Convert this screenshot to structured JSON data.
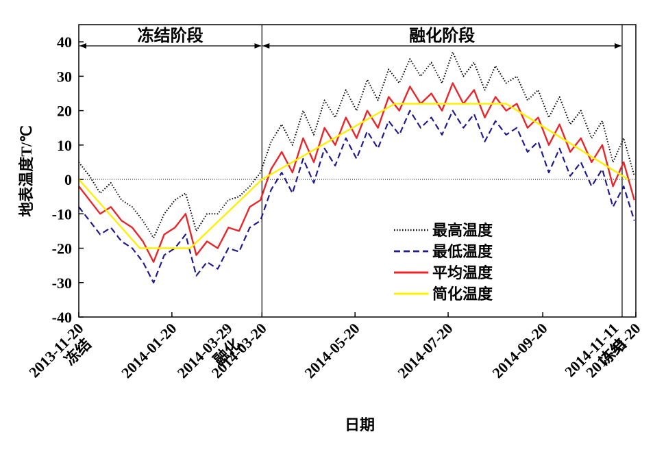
{
  "chart_data": {
    "type": "line",
    "y_label": "地表温度T/℃",
    "x_label": "日期",
    "x": [
      "2013-11-20",
      "2013-11-27",
      "2013-12-04",
      "2013-12-11",
      "2013-12-18",
      "2013-12-25",
      "2014-01-01",
      "2014-01-08",
      "2014-01-15",
      "2014-01-22",
      "2014-01-29",
      "2014-02-05",
      "2014-02-12",
      "2014-02-19",
      "2014-02-26",
      "2014-03-05",
      "2014-03-12",
      "2014-03-19",
      "2014-03-26",
      "2014-04-02",
      "2014-04-09",
      "2014-04-16",
      "2014-04-23",
      "2014-04-30",
      "2014-05-07",
      "2014-05-14",
      "2014-05-21",
      "2014-05-28",
      "2014-06-04",
      "2014-06-11",
      "2014-06-18",
      "2014-06-25",
      "2014-07-02",
      "2014-07-09",
      "2014-07-16",
      "2014-07-23",
      "2014-07-30",
      "2014-08-06",
      "2014-08-13",
      "2014-08-20",
      "2014-08-27",
      "2014-09-03",
      "2014-09-10",
      "2014-09-17",
      "2014-09-24",
      "2014-10-01",
      "2014-10-08",
      "2014-10-15",
      "2014-10-22",
      "2014-10-29",
      "2014-11-05",
      "2014-11-12",
      "2014-11-19"
    ],
    "series": [
      {
        "name": "最高温度",
        "color": "#000000",
        "dash": "dotted",
        "values": [
          5,
          1,
          -4,
          -1,
          -6,
          -8,
          -12,
          -17,
          -10,
          -6,
          -4,
          -15,
          -10,
          -10,
          -6,
          -5,
          -2,
          2,
          11,
          16,
          10,
          20,
          13,
          23,
          18,
          26,
          20,
          29,
          23,
          32,
          28,
          35,
          30,
          34,
          28,
          37,
          30,
          34,
          26,
          33,
          28,
          30,
          23,
          26,
          18,
          24,
          16,
          20,
          12,
          17,
          5,
          12,
          1
        ]
      },
      {
        "name": "最低温度",
        "color": "#211a8c",
        "dash": "dashed",
        "values": [
          -8,
          -12,
          -16,
          -14,
          -18,
          -20,
          -24,
          -30,
          -22,
          -20,
          -16,
          -28,
          -24,
          -26,
          -20,
          -21,
          -14,
          -12,
          -3,
          2,
          -4,
          6,
          -1,
          9,
          4,
          12,
          6,
          14,
          9,
          17,
          13,
          20,
          15,
          18,
          13,
          20,
          15,
          19,
          11,
          17,
          13,
          15,
          8,
          11,
          2,
          9,
          1,
          5,
          -2,
          3,
          -8,
          -2,
          -12
        ]
      },
      {
        "name": "平均温度",
        "color": "#e8262a",
        "dash": "solid",
        "values": [
          -2,
          -6,
          -10,
          -8,
          -12,
          -14,
          -18,
          -24,
          -16,
          -14,
          -10,
          -22,
          -18,
          -20,
          -14,
          -15,
          -8,
          -6,
          3,
          8,
          2,
          12,
          5,
          15,
          10,
          18,
          12,
          20,
          15,
          24,
          20,
          27,
          22,
          25,
          20,
          28,
          22,
          26,
          18,
          24,
          20,
          22,
          15,
          18,
          10,
          16,
          8,
          12,
          5,
          10,
          -2,
          5,
          -6
        ]
      },
      {
        "name": "简化温度",
        "color": "#fff000",
        "dash": "solid",
        "x": [
          "2013-11-20",
          "2013-12-30",
          "2014-02-01",
          "2014-03-20",
          "2014-06-15",
          "2014-08-27",
          "2014-11-15"
        ],
        "values": [
          0,
          -20,
          -20,
          0,
          22,
          22,
          0
        ]
      }
    ],
    "xlim": [
      "2013-11-20",
      "2014-11-20"
    ],
    "xticks": [
      "2013-11-20",
      "2014-01-20",
      "2014-03-20",
      "2014-05-20",
      "2014-07-20",
      "2014-09-20",
      "2014-11-20"
    ],
    "start_note": "冻结",
    "markers": [
      {
        "date": "2014-03-29",
        "label": "融化"
      },
      {
        "date": "2014-11-11",
        "label": "冻结"
      }
    ],
    "phases": [
      {
        "label": "冻结阶段",
        "start": "2013-11-20",
        "end": "2014-03-20"
      },
      {
        "label": "融化阶段",
        "start": "2014-03-20",
        "end": "2014-11-11"
      }
    ],
    "ylim": [
      -40,
      45
    ],
    "yticks": [
      -40,
      -30,
      -20,
      -10,
      0,
      10,
      20,
      30,
      40
    ],
    "reference_line": 0,
    "legend": "lower center"
  }
}
